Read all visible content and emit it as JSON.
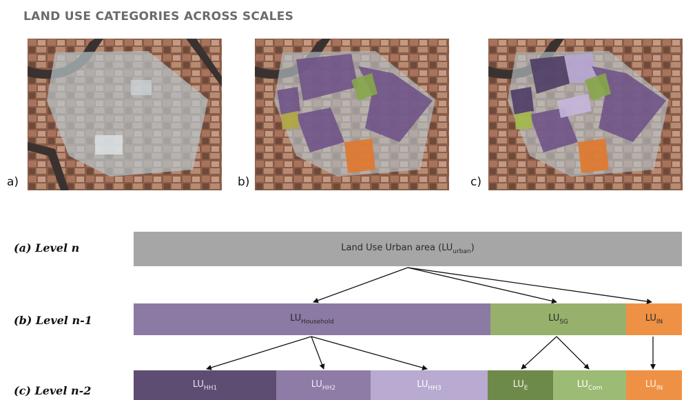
{
  "title": "LAND USE CATEGORIES ACROSS SCALES",
  "panels": [
    {
      "label": "a)",
      "image": "aerial-urban-block-unclassified"
    },
    {
      "label": "b)",
      "image": "aerial-urban-block-level-n-1"
    },
    {
      "label": "c)",
      "image": "aerial-urban-block-level-n-2"
    }
  ],
  "levels": {
    "a": "(a) Level n",
    "b": "(b) Level n-1",
    "c": "(c) Level n-2"
  },
  "bars": {
    "urban": {
      "main": "Land Use Urban area (LU",
      "sub": "urban",
      "end": ")",
      "color": "#a6a6a6"
    },
    "household": {
      "main": "LU",
      "sub": "Household",
      "color": "#8b7aa3"
    },
    "sg": {
      "main": "LU",
      "sub": "SG",
      "color": "#97b06b"
    },
    "in1": {
      "main": "LU",
      "sub": "IN",
      "color": "#ef9144"
    },
    "hh1": {
      "main": "LU",
      "sub": "HH1",
      "color": "#5e4d72"
    },
    "hh2": {
      "main": "LU",
      "sub": "HH2",
      "color": "#8e7ba6"
    },
    "hh3": {
      "main": "LU",
      "sub": "HH3",
      "color": "#b8aad0"
    },
    "e": {
      "main": "LU",
      "sub": "E",
      "color": "#6e8a4a"
    },
    "com": {
      "main": "LU",
      "sub": "Com",
      "color": "#9cbb75"
    },
    "in2": {
      "main": "LU",
      "sub": "IN",
      "color": "#ef9144"
    }
  }
}
